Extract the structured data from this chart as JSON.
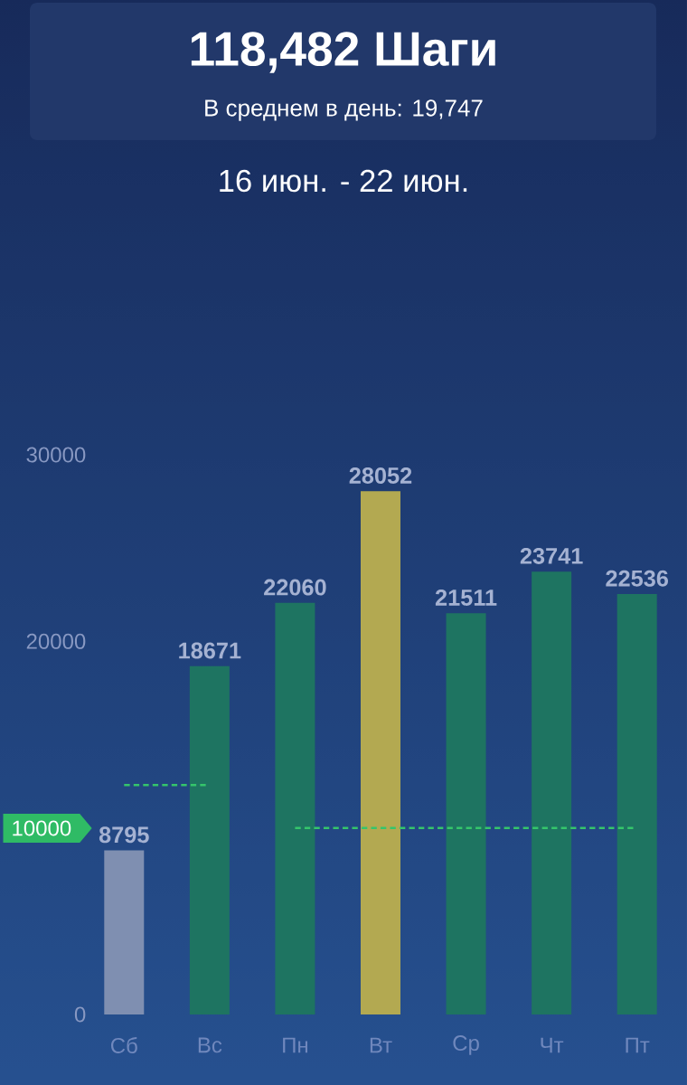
{
  "chart_data": {
    "type": "bar",
    "title": "118,482 Шаги",
    "subtitle": "В среднем в день:  19,747",
    "annotations": [
      "16 июн. - 22 июн.",
      "10000"
    ],
    "categories": [
      "Сб",
      "Вс",
      "Пн",
      "Вт",
      "Ср",
      "Чт",
      "Пт"
    ],
    "series": [
      {
        "colors": [
          "#7f8fb1",
          "#1e7461",
          "#1e7461",
          "#b3a951",
          "#1e7461",
          "#1e7461",
          "#1e7461"
        ],
        "values": [
          8795,
          18671,
          22060,
          28052,
          21511,
          23741,
          22536
        ],
        "value_labels": [
          "8795",
          "18671",
          "22060",
          "28052",
          "21511",
          "23741",
          "22536"
        ]
      },
      {
        "type": "line",
        "color": "#35c56b",
        "line_style": "dashed",
        "values": [
          12300,
          12300,
          null,
          null,
          null,
          null,
          null
        ]
      },
      {
        "type": "line",
        "color": "#35c56b",
        "line_style": "dashed",
        "values": [
          null,
          null,
          10000,
          10000,
          10000,
          10000,
          10000
        ]
      }
    ],
    "ylim": [
      0,
      30000
    ],
    "yticks": [
      0,
      20000,
      30000
    ]
  }
}
